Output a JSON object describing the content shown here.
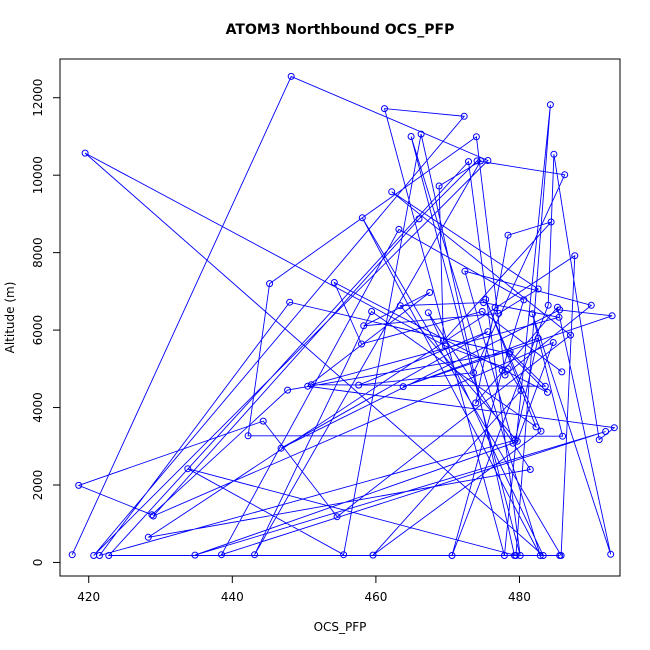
{
  "chart_data": {
    "type": "scatter",
    "title": "ATOM3 Northbound OCS_PFP",
    "xlabel": "OCS_PFP",
    "ylabel": "Altitude (m)",
    "xlim": [
      416,
      494
    ],
    "ylim": [
      -350,
      13000
    ],
    "xticks": [
      420,
      440,
      460,
      480
    ],
    "yticks": [
      0,
      2000,
      4000,
      6000,
      8000,
      10000,
      12000
    ],
    "grid": false,
    "legend": "none",
    "colors": {
      "series": "#0000ff",
      "axes": "#000000",
      "background": "#ffffff"
    },
    "series": [
      {
        "connected": true,
        "marker": "open-circle",
        "x": [
          417.7,
          448.2,
          475.6,
          420.7,
          472.3,
          461.2,
          477.9,
          484.3,
          479.5,
          433.8,
          455.5,
          466.3,
          479.3,
          485.6,
          422.8,
          472.9,
          480.1,
          464.9,
          482.9,
          458.1,
          485.8,
          487.7,
          428.3,
          481.5,
          467.3,
          483.3,
          419.5,
          469.7,
          478.4,
          480.2,
          459.6,
          483.0,
          475.3,
          482.3,
          459.4,
          443.1,
          474.6,
          468.8,
          469.4,
          484.4,
          478.4,
          476.6,
          473.9,
          485.3,
          492.7,
          481.8,
          486.0,
          442.2,
          445.2,
          474.0,
          478.0,
          490.0,
          472.4,
          479.1,
          434.8,
          492.0,
          438.5,
          463.2,
          480.6,
          477.6,
          470.6,
          484.0,
          484.8,
          491.1,
          493.2,
          450.5,
          467.5,
          458.3,
          477.1,
          482.6,
          462.2,
          487.1,
          454.6,
          444.3,
          418.6,
          428.8,
          447.7,
          478.7,
          483.6,
          451.0,
          485.5,
          475.0,
          463.4,
          479.7,
          484.7,
          429.0,
          466.0,
          474.1,
          486.3,
          473.6,
          457.6,
          475.6,
          446.8,
          485.6,
          492.9,
          463.8,
          482.6,
          479.4,
          421.5,
          448.0,
          478.6,
          483.9,
          454.2,
          458.0,
          474.8,
          485.9
        ],
        "y": [
          200,
          12550,
          10380,
          180,
          11520,
          11720,
          180,
          11820,
          180,
          2420,
          200,
          11060,
          180,
          180,
          180,
          10350,
          180,
          11000,
          180,
          8900,
          180,
          7920,
          650,
          2400,
          6450,
          180,
          10570,
          5590,
          5000,
          4440,
          190,
          3390,
          6790,
          3500,
          6480,
          200,
          10370,
          9720,
          5720,
          8790,
          8450,
          6580,
          4120,
          6590,
          210,
          6420,
          3260,
          3270,
          7200,
          10990,
          4840,
          6640,
          7520,
          3080,
          190,
          3380,
          200,
          8600,
          6780,
          4960,
          180,
          6640,
          10540,
          3170,
          3480,
          4550,
          6970,
          6110,
          6430,
          7060,
          9570,
          5870,
          1180,
          3650,
          1990,
          1230,
          4450,
          5440,
          4550,
          4590,
          6330,
          6710,
          6630,
          3130,
          5680,
          1200,
          8870,
          10370,
          10010,
          4900,
          4580,
          5960,
          2950,
          6520,
          6370,
          4540,
          5790,
          3160,
          180,
          6720,
          5390,
          4390,
          7230,
          5640,
          6480,
          4920
        ]
      }
    ]
  }
}
